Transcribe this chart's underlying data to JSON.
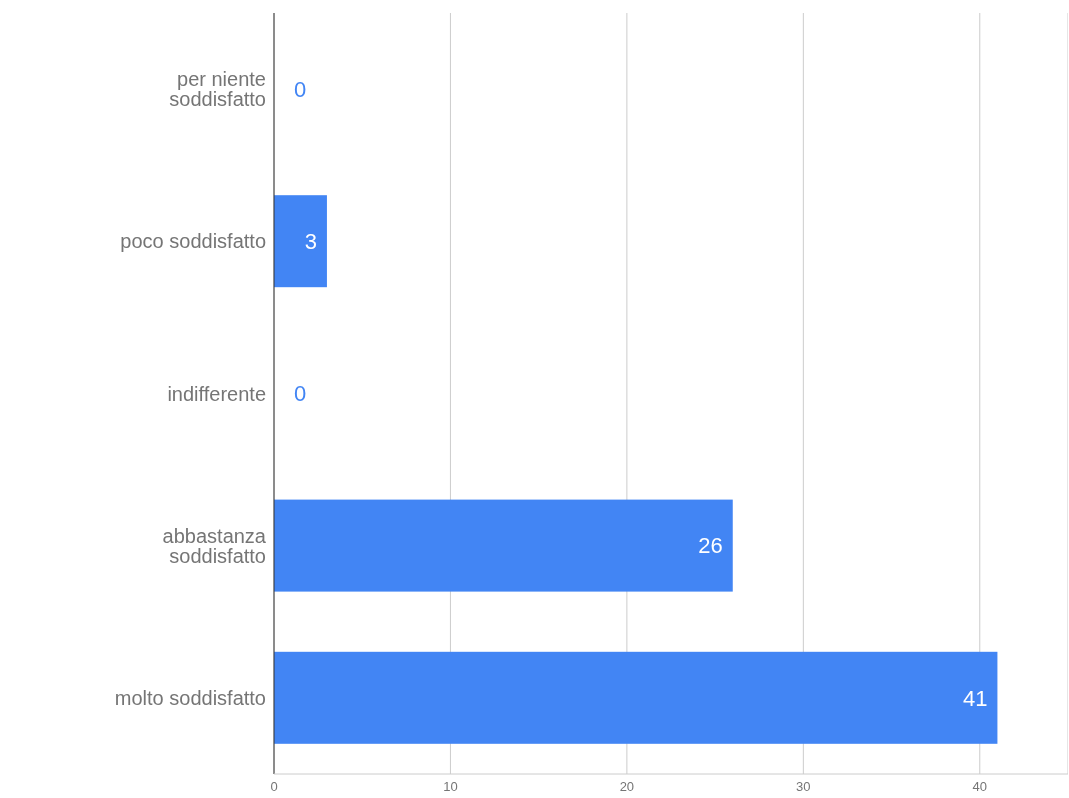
{
  "chart_data": {
    "type": "bar",
    "orientation": "horizontal",
    "categories": [
      "per niente soddisfatto",
      "poco soddisfatto",
      "indifferente",
      "abbastanza soddisfatto",
      "molto soddisfatto"
    ],
    "values": [
      0,
      3,
      0,
      26,
      41
    ],
    "color": "#4285f4",
    "xlim": [
      0,
      45
    ],
    "xticks": [
      0,
      10,
      20,
      30,
      40
    ],
    "grid": "x",
    "data_labels": true
  }
}
